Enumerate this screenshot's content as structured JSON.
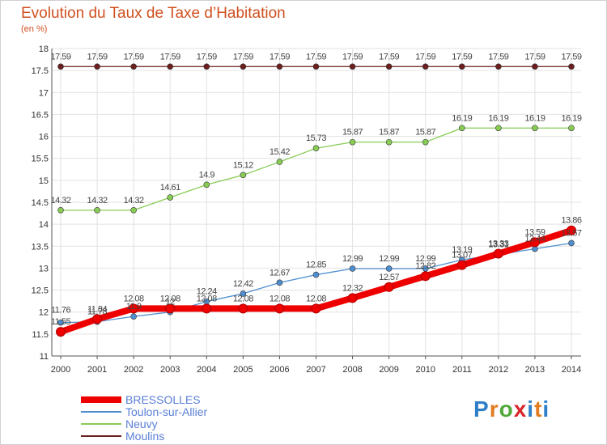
{
  "title": "Evolution du Taux de Taxe d’Habitation",
  "subtitle": "(en %)",
  "logo_text": "Proxiti",
  "colors": {
    "title": "#d0501f",
    "legend_text": "#5a7fd6",
    "grid": "#e2e2e2"
  },
  "chart_data": {
    "type": "line",
    "title": "Evolution du Taux de Taxe d’Habitation",
    "subtitle": "(en %)",
    "xlabel": "",
    "ylabel": "",
    "x": [
      "2000",
      "2001",
      "2002",
      "2003",
      "2004",
      "2005",
      "2006",
      "2007",
      "2008",
      "2009",
      "2010",
      "2011",
      "2012",
      "2013",
      "2014"
    ],
    "ylim": [
      11,
      18
    ],
    "yticks": [
      "11",
      "11.5",
      "12",
      "12.5",
      "13",
      "13.5",
      "14",
      "14.5",
      "15",
      "15.5",
      "16",
      "16.5",
      "17",
      "17.5",
      "18"
    ],
    "grid": true,
    "legend_position": "bottom-left",
    "series": [
      {
        "name": "BRESSOLLES",
        "color": "#ee0000",
        "values": [
          11.55,
          11.84,
          12.08,
          12.08,
          12.08,
          12.08,
          12.08,
          12.08,
          12.32,
          12.57,
          12.82,
          13.07,
          13.33,
          13.59,
          13.86
        ],
        "labels": [
          "11.55",
          "11.84",
          "12.08",
          "12.08",
          "12.08",
          "12.08",
          "12.08",
          "12.08",
          "12.32",
          "12.57",
          "12.82",
          "13.07",
          "13.33",
          "13.59",
          "13.86"
        ]
      },
      {
        "name": "Toulon-sur-Allier",
        "color": "#4f8fd0",
        "values": [
          11.76,
          11.78,
          11.9,
          12.0,
          12.24,
          12.42,
          12.67,
          12.85,
          12.99,
          12.99,
          12.99,
          13.19,
          13.31,
          13.44,
          13.57
        ],
        "labels": [
          "11.76",
          "11.78",
          "11.9",
          "12",
          "12.24",
          "12.42",
          "12.67",
          "12.85",
          "12.99",
          "12.99",
          "12.99",
          "13.19",
          "13.31",
          "13.44",
          "13.57"
        ]
      },
      {
        "name": "Neuvy",
        "color": "#88cc55",
        "values": [
          14.32,
          14.32,
          14.32,
          14.61,
          14.9,
          15.12,
          15.42,
          15.73,
          15.87,
          15.87,
          15.87,
          16.19,
          16.19,
          16.19,
          16.19
        ],
        "labels": [
          "14.32",
          "14.32",
          "14.32",
          "14.61",
          "14.9",
          "15.12",
          "15.42",
          "15.73",
          "15.87",
          "15.87",
          "15.87",
          "16.19",
          "16.19",
          "16.19",
          "16.19"
        ]
      },
      {
        "name": "Moulins",
        "color": "#6b1f1f",
        "values": [
          17.59,
          17.59,
          17.59,
          17.59,
          17.59,
          17.59,
          17.59,
          17.59,
          17.59,
          17.59,
          17.59,
          17.59,
          17.59,
          17.59,
          17.59
        ],
        "labels": [
          "17.59",
          "17.59",
          "17.59",
          "17.59",
          "17.59",
          "17.59",
          "17.59",
          "17.59",
          "17.59",
          "17.59",
          "17.59",
          "17.59",
          "17.59",
          "17.59",
          "17.59"
        ]
      }
    ]
  }
}
